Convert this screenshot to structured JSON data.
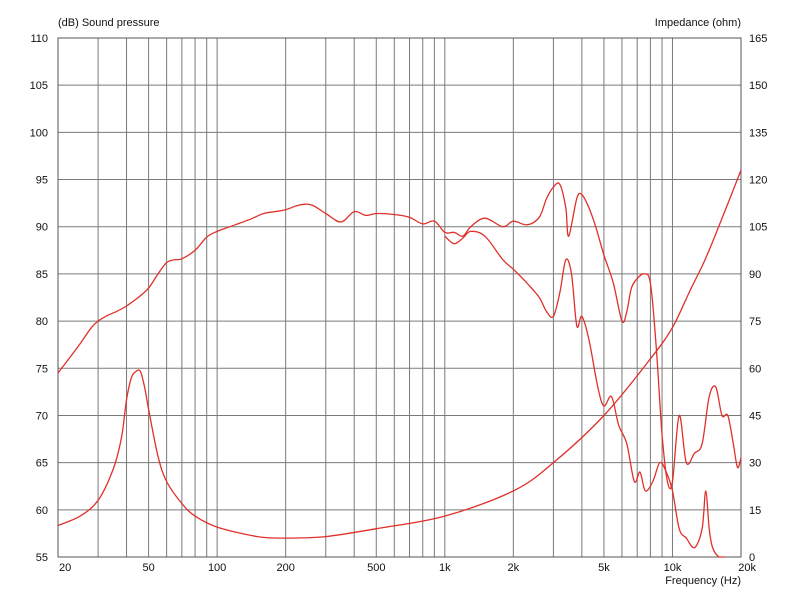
{
  "chart_data": {
    "type": "line",
    "left_axis_title": "(dB)  Sound pressure",
    "right_axis_title": "Impedance  (ohm)",
    "x_axis_title": "Frequency  (Hz)",
    "x_scale": "log",
    "x_range": [
      20,
      20000
    ],
    "y_left_range": [
      55,
      110
    ],
    "y_right_range": [
      0,
      165
    ],
    "x_ticks": [
      {
        "value": 20,
        "label": "20"
      },
      {
        "value": 50,
        "label": "50"
      },
      {
        "value": 100,
        "label": "100"
      },
      {
        "value": 200,
        "label": "200"
      },
      {
        "value": 500,
        "label": "500"
      },
      {
        "value": 1000,
        "label": "1k"
      },
      {
        "value": 2000,
        "label": "2k"
      },
      {
        "value": 5000,
        "label": "5k"
      },
      {
        "value": 10000,
        "label": "10k"
      },
      {
        "value": 20000,
        "label": "20k"
      }
    ],
    "y_left_ticks": [
      "55",
      "60",
      "65",
      "70",
      "75",
      "80",
      "85",
      "90",
      "95",
      "100",
      "105",
      "110"
    ],
    "y_right_ticks": [
      "0",
      "15",
      "30",
      "45",
      "60",
      "75",
      "90",
      "105",
      "120",
      "135",
      "150",
      "165"
    ],
    "grid": true,
    "line_color": "#e0302a",
    "grid_color": "#7a7a7a",
    "series": [
      {
        "axis": "left",
        "x": [
          20,
          22,
          25,
          28,
          30,
          33,
          36,
          40,
          45,
          50,
          55,
          60,
          65,
          70,
          80,
          90,
          100,
          120,
          140,
          160,
          180,
          200,
          230,
          260,
          300,
          350,
          400,
          450,
          500,
          600,
          700,
          800,
          900,
          1000,
          1100,
          1200,
          1300,
          1500,
          1800,
          2000,
          2300,
          2600,
          2800,
          3000,
          3200,
          3400,
          3500,
          3800,
          4000,
          4300,
          4600,
          5000,
          5500,
          6000,
          6300,
          6600,
          7000,
          7500,
          8000,
          8500,
          9000,
          9500,
          10000,
          10700,
          11500,
          12500,
          13500,
          14500,
          15500,
          16500,
          17500,
          18500,
          19300,
          20000
        ],
        "values": [
          74.5,
          75.8,
          77.6,
          79.3,
          80,
          80.6,
          81,
          81.6,
          82.5,
          83.5,
          85,
          86.2,
          86.5,
          86.6,
          87.5,
          88.9,
          89.5,
          90.2,
          90.8,
          91.4,
          91.6,
          91.8,
          92.3,
          92.3,
          91.4,
          90.5,
          91.6,
          91.2,
          91.4,
          91.3,
          91,
          90.3,
          90.6,
          89.4,
          89.4,
          89,
          90,
          90.9,
          90,
          90.6,
          90.2,
          91,
          93,
          94.2,
          94.5,
          92,
          89,
          93,
          93.4,
          92,
          90,
          87,
          84,
          80,
          81,
          83.5,
          84.5,
          85,
          84,
          77,
          68,
          63,
          63,
          70,
          65,
          66,
          67,
          72,
          73,
          70,
          70,
          67,
          64.5,
          65.5
        ]
      },
      {
        "axis": "left",
        "x": [
          1000,
          1100,
          1200,
          1300,
          1500,
          1800,
          2000,
          2300,
          2600,
          2800,
          3000,
          3200,
          3400,
          3600,
          3800,
          4000,
          4300,
          4700,
          5000,
          5400,
          5800,
          6300,
          6800,
          7200,
          7600,
          8200,
          8800,
          9400,
          10000,
          10700,
          11500,
          12500,
          13500,
          14000,
          14500,
          15000,
          16000,
          17000
        ],
        "values": [
          89,
          88.2,
          88.8,
          89.5,
          89,
          86.5,
          85.5,
          84,
          82.5,
          81,
          80.5,
          83,
          86.5,
          85,
          79.5,
          80.5,
          78,
          73,
          71,
          72,
          69,
          67,
          63,
          64,
          62,
          63,
          65,
          64,
          62,
          58,
          57,
          56,
          58,
          62,
          58,
          56,
          55,
          55
        ]
      },
      {
        "axis": "right",
        "x": [
          20,
          25,
          30,
          35,
          38,
          40,
          42,
          44,
          46,
          48,
          50,
          55,
          60,
          70,
          80,
          100,
          150,
          200,
          300,
          500,
          1000,
          2000,
          3000,
          5000,
          8000,
          10000,
          12000,
          14000,
          17000,
          20000
        ],
        "values": [
          10,
          13,
          18,
          28,
          38,
          50,
          57,
          59,
          59,
          54,
          47,
          32,
          24,
          17,
          13,
          9.5,
          6.5,
          6,
          6.5,
          9,
          13,
          21,
          30,
          45,
          63,
          73,
          85,
          95,
          110,
          123
        ]
      }
    ]
  }
}
